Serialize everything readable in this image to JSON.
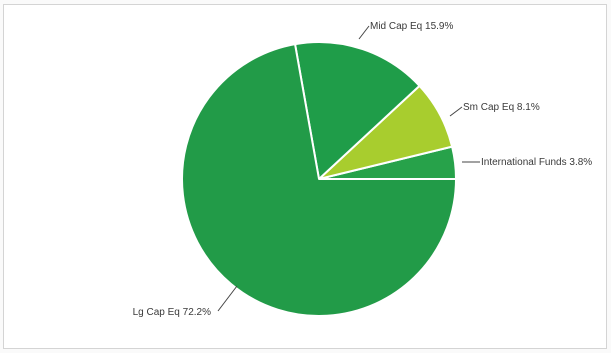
{
  "chart_data": {
    "type": "pie",
    "title": "",
    "slices": [
      {
        "name": "International Funds",
        "value": 3.8,
        "label": "International Funds 3.8%",
        "color": "#27a24a"
      },
      {
        "name": "Sm Cap Eq",
        "value": 8.1,
        "label": "Sm Cap Eq 8.1%",
        "color": "#a8cd2e"
      },
      {
        "name": "Mid Cap Eq",
        "value": 15.9,
        "label": "Mid Cap Eq 15.9%",
        "color": "#1f9d49"
      },
      {
        "name": "Lg Cap Eq",
        "value": 72.2,
        "label": "Lg Cap Eq 72.2%",
        "color": "#229b48"
      }
    ],
    "start_angle": "3 o'clock, counter-clockwise",
    "slice_border_color": "#ffffff",
    "legend": "none (data labels with leader lines)"
  }
}
